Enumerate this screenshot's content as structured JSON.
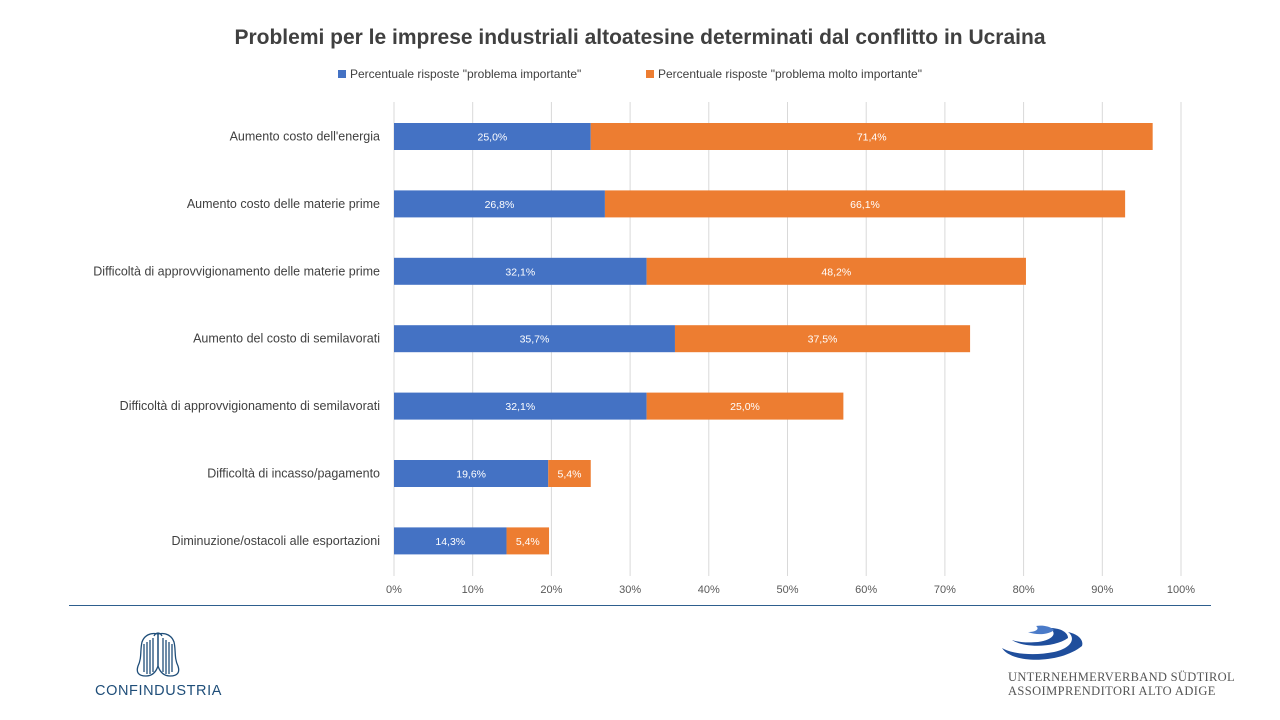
{
  "chart_data": {
    "type": "bar",
    "orientation": "horizontal",
    "stacked": true,
    "title": "Problemi per le imprese industriali altoatesine determinati dal conflitto in Ucraina",
    "categories": [
      "Aumento costo dell'energia",
      "Aumento costo delle materie prime",
      "Difficoltà di approvvigionamento delle materie prime",
      "Aumento del costo di semilavorati",
      "Difficoltà di approvvigionamento di semilavorati",
      "Difficoltà di incasso/pagamento",
      "Diminuzione/ostacoli alle esportazioni"
    ],
    "series": [
      {
        "name": "Percentuale risposte \"problema importante\"",
        "color": "#4472C4",
        "values": [
          25.0,
          26.8,
          32.1,
          35.7,
          32.1,
          19.6,
          14.3
        ],
        "labels": [
          "25,0%",
          "26,8%",
          "32,1%",
          "35,7%",
          "32,1%",
          "19,6%",
          "14,3%"
        ]
      },
      {
        "name": "Percentuale risposte \"problema molto importante\"",
        "color": "#ED7D31",
        "values": [
          71.4,
          66.1,
          48.2,
          37.5,
          25.0,
          5.4,
          5.4
        ],
        "labels": [
          "71,4%",
          "66,1%",
          "48,2%",
          "37,5%",
          "25,0%",
          "5,4%",
          "5,4%"
        ]
      }
    ],
    "xlim": [
      0,
      100
    ],
    "xticks": [
      "0%",
      "10%",
      "20%",
      "30%",
      "40%",
      "50%",
      "60%",
      "70%",
      "80%",
      "90%",
      "100%"
    ],
    "grid": true,
    "legend_position": "top"
  },
  "footer": {
    "left_logo_text": "CONFINDUSTRIA",
    "right_logo_line1": "UNTERNEHMERVERBAND SÜDTIROL",
    "right_logo_line2": "ASSOIMPRENDITORI ALTO ADIGE"
  }
}
